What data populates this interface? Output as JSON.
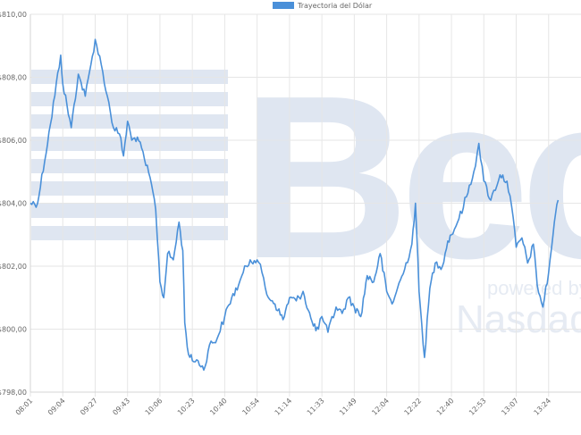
{
  "chart_data": {
    "type": "line",
    "title": "",
    "xlabel": "",
    "ylabel": "",
    "ylim": [
      798,
      810
    ],
    "y_ticks": [
      "$810,00",
      "$808,00",
      "$806,00",
      "$804,00",
      "$802,00",
      "$800,00",
      "$798,00"
    ],
    "x_ticks": [
      "08:01",
      "09:04",
      "09:27",
      "09:43",
      "10:06",
      "10:23",
      "10:40",
      "10:54",
      "11:14",
      "11:33",
      "11:49",
      "12:04",
      "12:22",
      "12:40",
      "12:53",
      "13:07",
      "13:24"
    ],
    "grid": true,
    "legend_position": "top-center",
    "watermark": {
      "brand": "Bec",
      "tagline": "powered by",
      "partner": "Nasdaq"
    },
    "series": [
      {
        "name": "Trayectoria del Dólar",
        "color": "#4a90d9",
        "points": [
          [
            "08:01",
            804.0
          ],
          [
            "08:15",
            804.0
          ],
          [
            "08:40",
            806.5
          ],
          [
            "09:00",
            808.7
          ],
          [
            "09:04",
            807.8
          ],
          [
            "09:10",
            806.4
          ],
          [
            "09:15",
            808.1
          ],
          [
            "09:20",
            807.4
          ],
          [
            "09:24",
            808.4
          ],
          [
            "09:27",
            809.2
          ],
          [
            "09:30",
            808.4
          ],
          [
            "09:33",
            807.4
          ],
          [
            "09:36",
            806.4
          ],
          [
            "09:39",
            806.2
          ],
          [
            "09:41",
            805.5
          ],
          [
            "09:43",
            806.6
          ],
          [
            "09:46",
            806.0
          ],
          [
            "09:50",
            806.1
          ],
          [
            "09:55",
            805.4
          ],
          [
            "10:00",
            804.6
          ],
          [
            "10:03",
            803.8
          ],
          [
            "10:05",
            802.3
          ],
          [
            "10:06",
            801.5
          ],
          [
            "10:08",
            801.0
          ],
          [
            "10:10",
            802.4
          ],
          [
            "10:13",
            802.2
          ],
          [
            "10:16",
            803.4
          ],
          [
            "10:18",
            802.5
          ],
          [
            "10:19",
            800.2
          ],
          [
            "10:21",
            799.2
          ],
          [
            "10:23",
            799.0
          ],
          [
            "10:26",
            799.0
          ],
          [
            "10:29",
            798.7
          ],
          [
            "10:32",
            799.5
          ],
          [
            "10:36",
            799.7
          ],
          [
            "10:40",
            800.4
          ],
          [
            "10:43",
            801.0
          ],
          [
            "10:46",
            801.4
          ],
          [
            "10:48",
            801.8
          ],
          [
            "10:51",
            802.2
          ],
          [
            "10:54",
            802.2
          ],
          [
            "10:57",
            801.8
          ],
          [
            "11:00",
            801.1
          ],
          [
            "11:05",
            800.8
          ],
          [
            "11:10",
            800.3
          ],
          [
            "11:14",
            801.0
          ],
          [
            "11:18",
            800.9
          ],
          [
            "11:22",
            801.2
          ],
          [
            "11:25",
            800.6
          ],
          [
            "11:28",
            800.1
          ],
          [
            "11:31",
            800.0
          ],
          [
            "11:33",
            800.4
          ],
          [
            "11:36",
            799.9
          ],
          [
            "11:40",
            800.7
          ],
          [
            "11:43",
            800.5
          ],
          [
            "11:46",
            801.0
          ],
          [
            "11:49",
            800.7
          ],
          [
            "11:52",
            800.4
          ],
          [
            "11:55",
            801.7
          ],
          [
            "11:58",
            801.5
          ],
          [
            "12:01",
            802.4
          ],
          [
            "12:04",
            801.2
          ],
          [
            "12:07",
            800.8
          ],
          [
            "12:10",
            801.3
          ],
          [
            "12:14",
            801.9
          ],
          [
            "12:18",
            802.7
          ],
          [
            "12:20",
            804.0
          ],
          [
            "12:22",
            801.2
          ],
          [
            "12:25",
            799.1
          ],
          [
            "12:28",
            801.3
          ],
          [
            "12:31",
            802.1
          ],
          [
            "12:35",
            802.0
          ],
          [
            "12:38",
            802.8
          ],
          [
            "12:40",
            803.0
          ],
          [
            "12:43",
            803.5
          ],
          [
            "12:46",
            804.2
          ],
          [
            "12:49",
            805.0
          ],
          [
            "12:51",
            805.9
          ],
          [
            "12:53",
            804.7
          ],
          [
            "12:56",
            804.1
          ],
          [
            "13:00",
            804.9
          ],
          [
            "13:03",
            804.7
          ],
          [
            "13:05",
            803.9
          ],
          [
            "13:07",
            802.6
          ],
          [
            "13:10",
            802.9
          ],
          [
            "13:13",
            802.1
          ],
          [
            "13:16",
            802.7
          ],
          [
            "13:18",
            801.4
          ],
          [
            "13:21",
            800.7
          ],
          [
            "13:24",
            801.8
          ],
          [
            "13:27",
            803.4
          ],
          [
            "13:29",
            804.1
          ]
        ]
      }
    ]
  }
}
